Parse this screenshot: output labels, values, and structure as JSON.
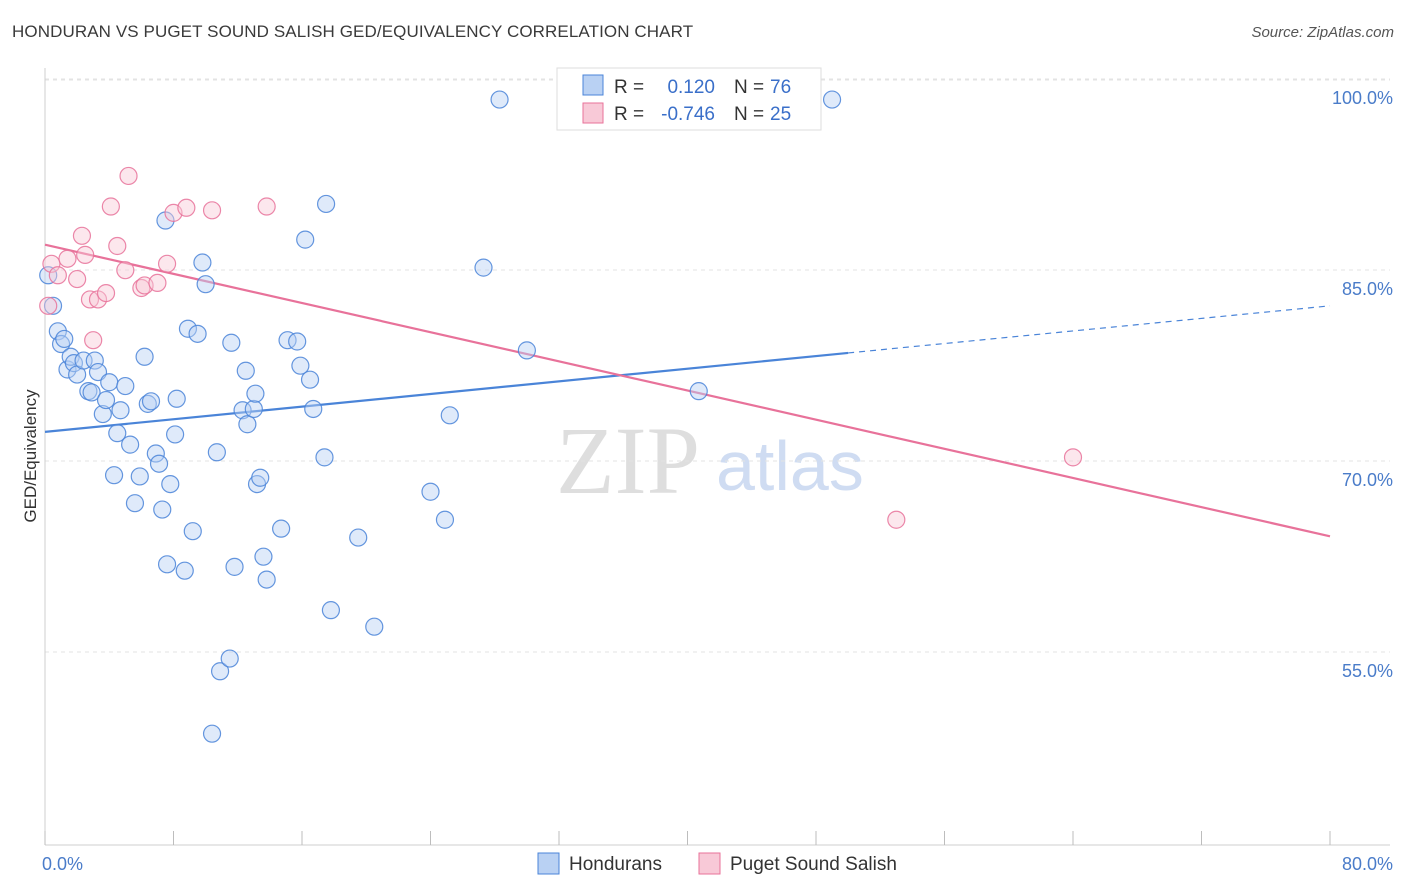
{
  "header": {
    "title": "HONDURAN VS PUGET SOUND SALISH GED/EQUIVALENCY CORRELATION CHART",
    "source": "Source: ZipAtlas.com"
  },
  "watermark": {
    "zip": "ZIP",
    "atlas": "atlas"
  },
  "legend": {
    "rows": [
      {
        "r_label": "R =",
        "r_value": "0.120",
        "n_label": "N =",
        "n_value": "76"
      },
      {
        "r_label": "R =",
        "r_value": "-0.746",
        "n_label": "N =",
        "n_value": "25"
      }
    ]
  },
  "bottom_legend": [
    "Hondurans",
    "Puget Sound Salish"
  ],
  "chart_data": {
    "type": "scatter",
    "title": "HONDURAN VS PUGET SOUND SALISH GED/EQUIVALENCY CORRELATION CHART",
    "xlabel": "",
    "ylabel": "GED/Equivalency",
    "xlim": [
      0,
      80
    ],
    "ylim": [
      40,
      103
    ],
    "x_tick_labels": [
      {
        "value": 0,
        "label": "0.0%"
      },
      {
        "value": 80,
        "label": "80.0%"
      }
    ],
    "y_tick_labels": [
      {
        "value": 100,
        "label": "100.0%"
      },
      {
        "value": 85,
        "label": "85.0%"
      },
      {
        "value": 70,
        "label": "70.0%"
      },
      {
        "value": 55,
        "label": "55.0%"
      }
    ],
    "grid": true,
    "legend_position": "top-center",
    "colors": {
      "hondurans": "#4a84d8",
      "salish": "#e8729a"
    },
    "series": [
      {
        "name": "Hondurans",
        "color": "#4a84d8",
        "trend": {
          "x0": 0,
          "y0": 73.7,
          "x1": 50,
          "y1": 79.9,
          "dashed_to": 80,
          "dashed_y": 83.6
        },
        "points": [
          [
            0.2,
            86.0
          ],
          [
            0.5,
            83.6
          ],
          [
            0.8,
            81.6
          ],
          [
            1.0,
            80.6
          ],
          [
            1.2,
            81.0
          ],
          [
            1.4,
            78.6
          ],
          [
            1.6,
            79.6
          ],
          [
            1.8,
            79.1
          ],
          [
            2.0,
            78.2
          ],
          [
            2.4,
            79.3
          ],
          [
            2.7,
            76.9
          ],
          [
            2.9,
            76.8
          ],
          [
            3.1,
            79.3
          ],
          [
            3.3,
            78.4
          ],
          [
            3.6,
            75.1
          ],
          [
            3.8,
            76.2
          ],
          [
            4.0,
            77.6
          ],
          [
            4.3,
            70.3
          ],
          [
            4.5,
            73.6
          ],
          [
            4.7,
            75.4
          ],
          [
            5.0,
            77.3
          ],
          [
            5.3,
            72.7
          ],
          [
            5.6,
            68.1
          ],
          [
            5.9,
            70.2
          ],
          [
            6.2,
            79.6
          ],
          [
            6.4,
            75.9
          ],
          [
            6.6,
            76.1
          ],
          [
            6.9,
            72.0
          ],
          [
            7.1,
            71.2
          ],
          [
            7.3,
            67.6
          ],
          [
            7.6,
            63.3
          ],
          [
            7.8,
            69.6
          ],
          [
            8.1,
            73.5
          ],
          [
            8.2,
            76.3
          ],
          [
            8.7,
            62.8
          ],
          [
            8.9,
            81.8
          ],
          [
            9.2,
            65.9
          ],
          [
            9.5,
            81.4
          ],
          [
            9.8,
            87.0
          ],
          [
            10.0,
            85.3
          ],
          [
            10.4,
            50.0
          ],
          [
            10.7,
            72.1
          ],
          [
            10.9,
            54.9
          ],
          [
            11.5,
            55.9
          ],
          [
            11.6,
            80.7
          ],
          [
            11.8,
            63.1
          ],
          [
            12.3,
            75.4
          ],
          [
            12.5,
            78.5
          ],
          [
            12.6,
            74.3
          ],
          [
            13.0,
            75.5
          ],
          [
            13.1,
            76.7
          ],
          [
            13.2,
            69.6
          ],
          [
            13.6,
            63.9
          ],
          [
            13.8,
            62.1
          ],
          [
            13.4,
            70.1
          ],
          [
            14.7,
            66.1
          ],
          [
            15.1,
            80.9
          ],
          [
            15.7,
            80.8
          ],
          [
            15.9,
            78.9
          ],
          [
            16.2,
            88.8
          ],
          [
            16.5,
            77.8
          ],
          [
            16.7,
            75.5
          ],
          [
            17.4,
            71.7
          ],
          [
            17.8,
            59.7
          ],
          [
            17.5,
            91.6
          ],
          [
            19.5,
            65.4
          ],
          [
            20.5,
            58.4
          ],
          [
            24.0,
            69.0
          ],
          [
            24.9,
            66.8
          ],
          [
            25.2,
            75.0
          ],
          [
            27.3,
            86.6
          ],
          [
            28.3,
            99.8
          ],
          [
            30.0,
            80.1
          ],
          [
            40.7,
            76.9
          ],
          [
            49.0,
            99.8
          ],
          [
            7.5,
            90.3
          ]
        ]
      },
      {
        "name": "Puget Sound Salish",
        "color": "#e8729a",
        "trend": {
          "x0": 0,
          "y0": 88.4,
          "x1": 80,
          "y1": 65.5
        },
        "points": [
          [
            0.2,
            83.6
          ],
          [
            0.4,
            86.9
          ],
          [
            0.8,
            86.0
          ],
          [
            1.4,
            87.3
          ],
          [
            2.0,
            85.7
          ],
          [
            2.3,
            89.1
          ],
          [
            2.5,
            87.6
          ],
          [
            2.8,
            84.1
          ],
          [
            3.0,
            80.9
          ],
          [
            3.3,
            84.1
          ],
          [
            3.8,
            84.6
          ],
          [
            4.1,
            91.4
          ],
          [
            4.5,
            88.3
          ],
          [
            5.0,
            86.4
          ],
          [
            5.2,
            93.8
          ],
          [
            6.0,
            85.0
          ],
          [
            6.2,
            85.2
          ],
          [
            7.0,
            85.4
          ],
          [
            7.6,
            86.9
          ],
          [
            8.0,
            90.9
          ],
          [
            8.8,
            91.3
          ],
          [
            10.4,
            91.1
          ],
          [
            13.8,
            91.4
          ],
          [
            64.0,
            71.7
          ],
          [
            53.0,
            66.8
          ]
        ]
      }
    ]
  }
}
